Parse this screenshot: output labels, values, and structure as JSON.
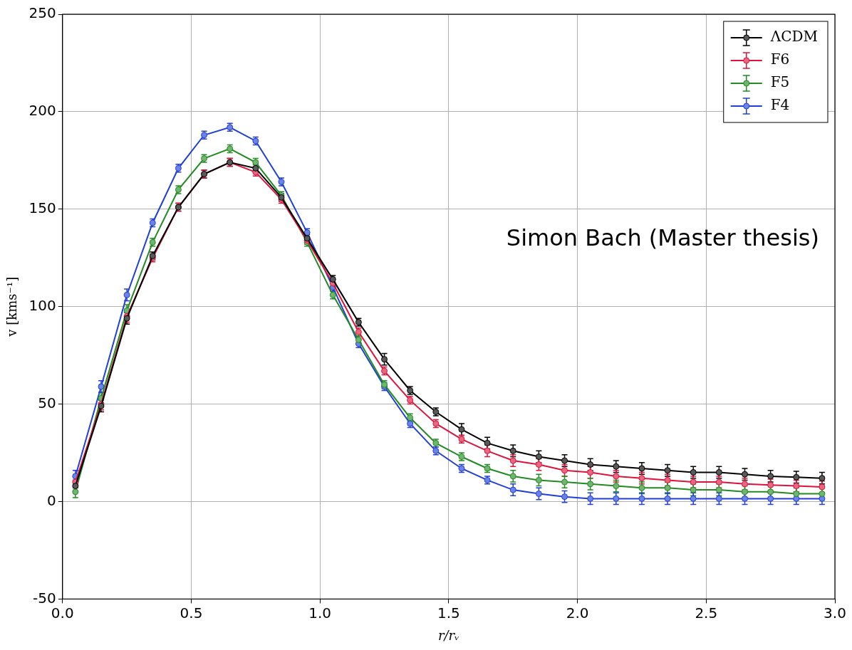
{
  "chart_data": {
    "type": "line",
    "x_label": "r/rᵥ",
    "y_label": "v [kms⁻¹]",
    "annotation": "Simon Bach (Master thesis)",
    "x": [
      0.05,
      0.15,
      0.25,
      0.35,
      0.45,
      0.55,
      0.65,
      0.75,
      0.85,
      0.95,
      1.05,
      1.15,
      1.25,
      1.35,
      1.45,
      1.55,
      1.65,
      1.75,
      1.85,
      1.95,
      2.05,
      2.15,
      2.25,
      2.35,
      2.45,
      2.55,
      2.65,
      2.75,
      2.85,
      2.95
    ],
    "series": [
      {
        "name": "ΛCDM",
        "color": "#000000",
        "marker": "circle",
        "line_style": "solid",
        "values": [
          8,
          49,
          94,
          126,
          151,
          168,
          174,
          171,
          156,
          135,
          114,
          92,
          73,
          57,
          46,
          37,
          30,
          26,
          23,
          21,
          19,
          18,
          17,
          16,
          15,
          15,
          14,
          13,
          12.5,
          12
        ],
        "errors": [
          3,
          3,
          3,
          2,
          2,
          2,
          2,
          2,
          2,
          2,
          2,
          2,
          3,
          2,
          2,
          3,
          3,
          3,
          3,
          3,
          3,
          3,
          3,
          3,
          3,
          3,
          3,
          3,
          3,
          3
        ]
      },
      {
        "name": "F6",
        "color": "#dc143c",
        "marker": "circle",
        "line_style": "solid",
        "values": [
          10,
          50,
          95,
          125,
          151,
          168,
          174,
          169,
          155,
          134,
          112,
          87,
          67,
          52,
          40,
          32,
          26,
          21,
          19,
          16,
          15,
          13,
          12,
          11,
          10,
          10,
          9,
          8.5,
          8,
          7.5
        ],
        "errors": [
          3,
          3,
          3,
          2,
          2,
          2,
          2,
          2,
          2,
          2,
          2,
          2,
          2,
          2,
          2,
          2,
          3,
          3,
          3,
          3,
          3,
          3,
          3,
          3,
          3,
          3,
          3,
          3,
          3,
          3
        ]
      },
      {
        "name": "F5",
        "color": "#228b22",
        "marker": "circle",
        "line_style": "solid",
        "values": [
          5,
          53,
          98,
          133,
          160,
          176,
          181,
          174,
          157,
          133,
          106,
          83,
          60,
          43,
          30,
          23,
          17,
          13,
          11,
          10,
          9,
          8,
          7,
          7,
          6,
          6,
          5,
          5,
          4,
          4
        ],
        "errors": [
          3,
          3,
          3,
          2,
          2,
          2,
          2,
          2,
          2,
          2,
          2,
          2,
          2,
          2,
          2,
          2,
          2,
          3,
          3,
          3,
          3,
          3,
          3,
          3,
          3,
          3,
          3,
          3,
          3,
          3
        ]
      },
      {
        "name": "F4",
        "color": "#1f3fd8",
        "marker": "circle",
        "line_style": "solid",
        "values": [
          13,
          59,
          106,
          143,
          171,
          188,
          192,
          185,
          164,
          138,
          110,
          81,
          59,
          40,
          26,
          17,
          11,
          6,
          4,
          2.5,
          1.5,
          1.5,
          1.5,
          1.5,
          1.5,
          1.5,
          1.5,
          1.5,
          1.5,
          1.5
        ],
        "errors": [
          3,
          3,
          3,
          2,
          2,
          2,
          2,
          2,
          2,
          2,
          2,
          2,
          2,
          2,
          2,
          2,
          2,
          3,
          3,
          3,
          3,
          3,
          3,
          3,
          3,
          3,
          3,
          3,
          3,
          3
        ]
      }
    ],
    "xlim": [
      0,
      3
    ],
    "xticks": [
      {
        "value": 0,
        "label": "0.0"
      },
      {
        "value": 0.5,
        "label": "0.5"
      },
      {
        "value": 1,
        "label": "1.0"
      },
      {
        "value": 1.5,
        "label": "1.5"
      },
      {
        "value": 2,
        "label": "2.0"
      },
      {
        "value": 2.5,
        "label": "2.5"
      },
      {
        "value": 3,
        "label": "3.0"
      }
    ],
    "ylim": [
      -50,
      250
    ],
    "yticks": [
      -50,
      0,
      50,
      100,
      150,
      200,
      250
    ],
    "grid": true,
    "legend": "upper right"
  }
}
